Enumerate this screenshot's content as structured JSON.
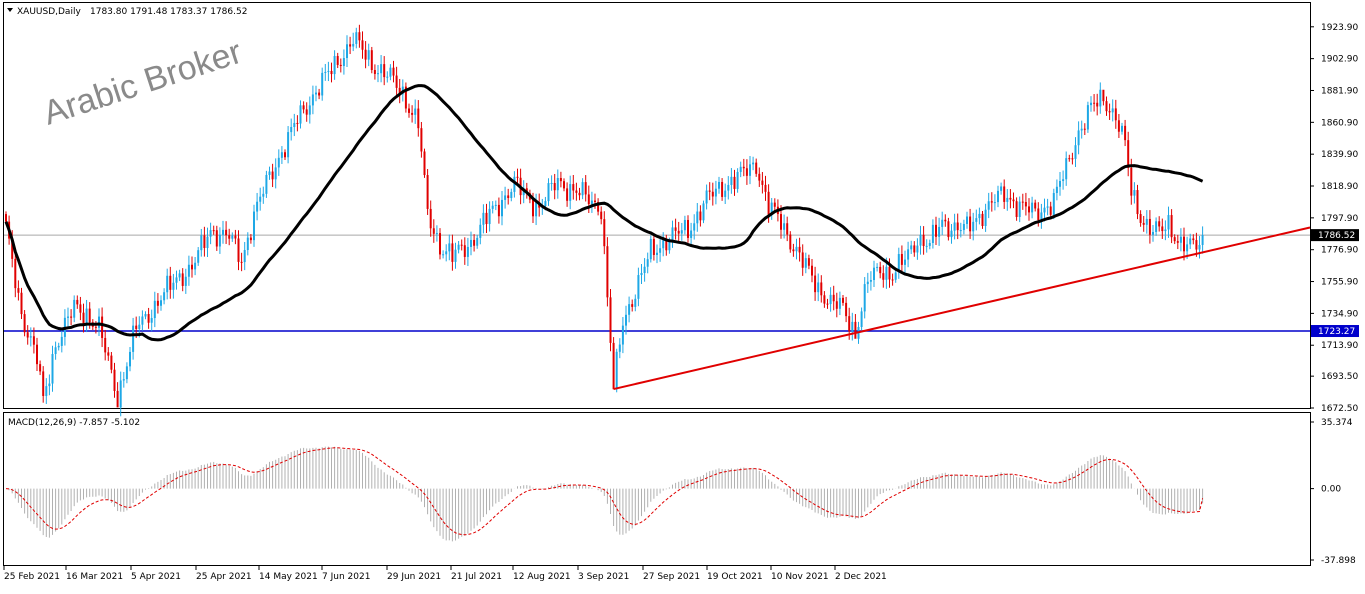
{
  "chart_data": [
    {
      "type": "candlestick",
      "symbol_label": "XAUUSD,Daily",
      "ohlc_label": "1783.80 1791.48 1783.37 1786.52",
      "watermark": "Arabic Broker",
      "ylim": [
        1672.5,
        1933.0
      ],
      "y_ticks": [
        "1923.90",
        "1902.90",
        "1881.90",
        "1860.90",
        "1839.90",
        "1818.90",
        "1797.90",
        "1776.90",
        "1755.90",
        "1734.90",
        "1713.90",
        "1693.50",
        "1672.50"
      ],
      "x_ticks": [
        "25 Feb 2021",
        "16 Mar 2021",
        "5 Apr 2021",
        "25 Apr 2021",
        "14 May 2021",
        "7 Jun 2021",
        "29 Jun 2021",
        "21 Jul 2021",
        "12 Aug 2021",
        "3 Sep 2021",
        "27 Sep 2021",
        "19 Oct 2021",
        "10 Nov 2021",
        "2 Dec 2021"
      ],
      "current_price": {
        "label": "1786.52",
        "value": 1786.52,
        "color": "#a9a9a9"
      },
      "support_line": {
        "label": "1723.27",
        "value": 1723.27,
        "color": "#0000cc"
      },
      "moving_average_color": "#000000",
      "trendline_color": "#e00000",
      "bull_color": "#1ea8e6",
      "bear_color": "#e00000",
      "key_levels": {
        "start_value": 1790,
        "feb_low": 1676,
        "mar_low": 1680,
        "may_high": 1916,
        "aug_low": 1685,
        "sep_high": 1834,
        "sep_low": 1722,
        "nov_high": 1877,
        "last_close": 1786.52
      }
    },
    {
      "type": "macd",
      "label": "MACD(12,26,9) -7.857 -5.102",
      "main_value": -7.857,
      "signal_value": -5.102,
      "ylim": [
        -37.898,
        35.374
      ],
      "y_ticks": [
        "35.374",
        "0.00",
        "-37.898"
      ],
      "histogram_color": "#b0b0b0",
      "signal_color": "#e00000"
    }
  ]
}
